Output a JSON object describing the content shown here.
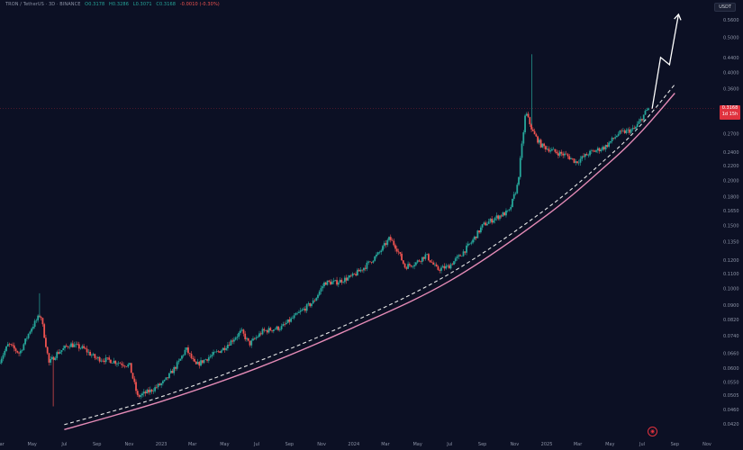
{
  "header": {
    "symbol": "TRON / TetherUS · 3D · BINANCE",
    "open": "O0.3178",
    "high": "H0.3286",
    "low": "L0.3071",
    "close": "C0.3168",
    "change": "-0.0010 (-0.30%)"
  },
  "currency_label": "USDT",
  "price_badge": {
    "price": "0.3168",
    "countdown": "1d 15h"
  },
  "logo_label": "tradingview-logo",
  "colors": {
    "background": "#0c1024",
    "up": "#26a69a",
    "down": "#ef5350",
    "support": "#e58bb7",
    "dashed": "#e6e6e6",
    "projection": "#ffffff"
  },
  "chart_data": {
    "type": "candlestick",
    "scale": "log",
    "ylim": [
      0.04,
      0.63
    ],
    "y_ticks": [
      "0.5600",
      "0.5000",
      "0.4400",
      "0.4000",
      "0.3600",
      "0.3200",
      "0.2700",
      "0.2400",
      "0.2200",
      "0.2000",
      "0.1800",
      "0.1650",
      "0.1500",
      "0.1350",
      "0.1200",
      "0.1100",
      "0.1000",
      "0.0900",
      "0.0820",
      "0.0740",
      "0.0660",
      "0.0600",
      "0.0550",
      "0.0505",
      "0.0460",
      "0.0420"
    ],
    "x_ticks": [
      "Mar",
      "May",
      "Jul",
      "Sep",
      "Nov",
      "2023",
      "Mar",
      "May",
      "Jul",
      "Sep",
      "Nov",
      "2024",
      "Mar",
      "May",
      "Jul",
      "Sep",
      "Nov",
      "2025",
      "Mar",
      "May",
      "Jul",
      "Sep",
      "Nov"
    ],
    "price_path": [
      [
        "2022-03-01",
        0.062
      ],
      [
        "2022-03-20",
        0.07
      ],
      [
        "2022-04-10",
        0.066
      ],
      [
        "2022-05-01",
        0.077
      ],
      [
        "2022-05-20",
        0.085
      ],
      [
        "2022-06-05",
        0.062
      ],
      [
        "2022-06-20",
        0.066
      ],
      [
        "2022-07-15",
        0.07
      ],
      [
        "2022-08-10",
        0.068
      ],
      [
        "2022-09-01",
        0.064
      ],
      [
        "2022-10-01",
        0.063
      ],
      [
        "2022-11-05",
        0.061
      ],
      [
        "2022-11-20",
        0.05
      ],
      [
        "2022-12-15",
        0.052
      ],
      [
        "2023-01-10",
        0.055
      ],
      [
        "2023-02-05",
        0.062
      ],
      [
        "2023-02-20",
        0.068
      ],
      [
        "2023-03-10",
        0.061
      ],
      [
        "2023-04-01",
        0.064
      ],
      [
        "2023-05-01",
        0.068
      ],
      [
        "2023-06-05",
        0.076
      ],
      [
        "2023-06-20",
        0.07
      ],
      [
        "2023-07-15",
        0.076
      ],
      [
        "2023-08-20",
        0.078
      ],
      [
        "2023-09-20",
        0.085
      ],
      [
        "2023-10-20",
        0.092
      ],
      [
        "2023-11-10",
        0.104
      ],
      [
        "2023-12-01",
        0.104
      ],
      [
        "2024-01-01",
        0.108
      ],
      [
        "2024-01-25",
        0.115
      ],
      [
        "2024-02-20",
        0.125
      ],
      [
        "2024-03-12",
        0.138
      ],
      [
        "2024-03-25",
        0.13
      ],
      [
        "2024-04-10",
        0.115
      ],
      [
        "2024-05-01",
        0.118
      ],
      [
        "2024-05-20",
        0.124
      ],
      [
        "2024-06-10",
        0.113
      ],
      [
        "2024-07-01",
        0.115
      ],
      [
        "2024-07-25",
        0.124
      ],
      [
        "2024-08-15",
        0.135
      ],
      [
        "2024-09-05",
        0.15
      ],
      [
        "2024-10-01",
        0.158
      ],
      [
        "2024-10-25",
        0.164
      ],
      [
        "2024-11-10",
        0.195
      ],
      [
        "2024-11-25",
        0.31
      ],
      [
        "2024-12-10",
        0.27
      ],
      [
        "2024-12-25",
        0.25
      ],
      [
        "2025-01-20",
        0.24
      ],
      [
        "2025-02-10",
        0.235
      ],
      [
        "2025-03-01",
        0.225
      ],
      [
        "2025-03-25",
        0.238
      ],
      [
        "2025-04-25",
        0.248
      ],
      [
        "2025-05-20",
        0.27
      ],
      [
        "2025-06-20",
        0.278
      ],
      [
        "2025-07-15",
        0.3168
      ]
    ],
    "annotation_spikes": [
      {
        "date": "2024-12-04",
        "high": 0.449
      },
      {
        "date": "2022-05-15",
        "high": 0.097
      },
      {
        "date": "2022-06-10",
        "low": 0.047
      }
    ],
    "support_curve": [
      [
        "2022-07-01",
        0.0405
      ],
      [
        "2023-01-01",
        0.0485
      ],
      [
        "2023-07-01",
        0.06
      ],
      [
        "2024-01-01",
        0.078
      ],
      [
        "2024-07-01",
        0.105
      ],
      [
        "2025-01-01",
        0.16
      ],
      [
        "2025-05-01",
        0.225
      ],
      [
        "2025-07-01",
        0.275
      ],
      [
        "2025-09-01",
        0.35
      ]
    ],
    "dashed_curve": [
      [
        "2022-07-01",
        0.0418
      ],
      [
        "2023-01-01",
        0.05
      ],
      [
        "2023-07-01",
        0.0625
      ],
      [
        "2024-01-01",
        0.081
      ],
      [
        "2024-07-01",
        0.11
      ],
      [
        "2025-01-01",
        0.167
      ],
      [
        "2025-05-01",
        0.235
      ],
      [
        "2025-07-01",
        0.288
      ],
      [
        "2025-09-01",
        0.37
      ]
    ],
    "projection": [
      [
        "2025-07-20",
        0.3168
      ],
      [
        "2025-08-05",
        0.44
      ],
      [
        "2025-08-22",
        0.42
      ],
      [
        "2025-09-08",
        0.58
      ]
    ]
  }
}
